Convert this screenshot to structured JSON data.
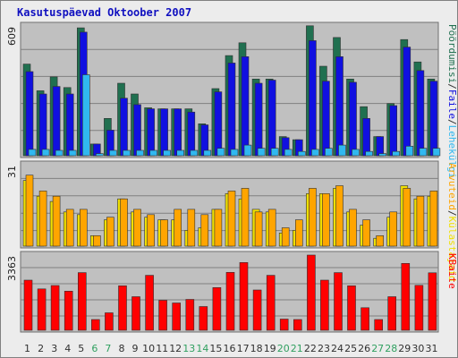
{
  "title": "Kasutuspäevad Oktoober 2007",
  "colors": {
    "plot_bg": "#c0c0c0",
    "grid": "#808080",
    "visits": "#207050",
    "pages": "#1010e0",
    "files": "#30b8f0",
    "visitors": "#ffa500",
    "sites": "#f0e000",
    "kbytes": "#ff0000",
    "weekday_label": "#303030",
    "weekend_label": "#30a060"
  },
  "chart_data": [
    {
      "type": "bar",
      "panel": "top",
      "ymax_label": "609",
      "ylim": [
        0,
        609
      ],
      "categories": [
        "1",
        "2",
        "3",
        "4",
        "5",
        "6",
        "7",
        "8",
        "9",
        "10",
        "11",
        "12",
        "13",
        "14",
        "15",
        "16",
        "17",
        "18",
        "19",
        "20",
        "21",
        "22",
        "23",
        "24",
        "25",
        "26",
        "27",
        "28",
        "29",
        "30",
        "31"
      ],
      "weekend": [
        "6",
        "7",
        "13",
        "14",
        "20",
        "21",
        "27",
        "28"
      ],
      "series": [
        {
          "name": "Pöördumisi",
          "color_key": "visits",
          "values": [
            430,
            305,
            370,
            320,
            600,
            55,
            175,
            340,
            290,
            225,
            220,
            220,
            220,
            150,
            315,
            470,
            530,
            360,
            360,
            90,
            75,
            610,
            420,
            555,
            360,
            230,
            90,
            245,
            545,
            440,
            360
          ]
        },
        {
          "name": "Faile",
          "color_key": "pages",
          "values": [
            395,
            290,
            325,
            290,
            580,
            55,
            120,
            270,
            240,
            220,
            220,
            220,
            205,
            145,
            300,
            435,
            465,
            340,
            355,
            85,
            75,
            540,
            350,
            465,
            345,
            175,
            90,
            235,
            510,
            400,
            350
          ]
        },
        {
          "name": "Lehekülgi",
          "color_key": "files",
          "values": [
            30,
            30,
            25,
            25,
            380,
            10,
            25,
            25,
            25,
            25,
            25,
            25,
            25,
            25,
            35,
            30,
            50,
            35,
            35,
            30,
            20,
            30,
            35,
            50,
            30,
            20,
            10,
            20,
            45,
            35,
            35
          ]
        }
      ],
      "right_legend": [
        "Pöördumisi",
        "/",
        "Faile",
        "/",
        "Lehekülgi"
      ]
    },
    {
      "type": "bar",
      "panel": "middle",
      "ymax_label": "31",
      "ylim": [
        0,
        31
      ],
      "categories": [
        "1",
        "2",
        "3",
        "4",
        "5",
        "6",
        "7",
        "8",
        "9",
        "10",
        "11",
        "12",
        "13",
        "14",
        "15",
        "16",
        "17",
        "18",
        "19",
        "20",
        "21",
        "22",
        "23",
        "24",
        "25",
        "26",
        "27",
        "28",
        "29",
        "30",
        "31"
      ],
      "series": [
        {
          "name": "Külastajaid",
          "color_key": "sites",
          "values": [
            25,
            19,
            17,
            13,
            12,
            4,
            10,
            18,
            13,
            11,
            10,
            10,
            6,
            7,
            14,
            20,
            18,
            14,
            13,
            5,
            6,
            20,
            20,
            22,
            13,
            8,
            3,
            11,
            23,
            18,
            19
          ]
        },
        {
          "name": "Arvuteid",
          "color_key": "visitors",
          "values": [
            27,
            21,
            19,
            14,
            14,
            4,
            11,
            18,
            14,
            12,
            10,
            14,
            14,
            12,
            14,
            21,
            22,
            13,
            14,
            7,
            10,
            22,
            20,
            23,
            14,
            10,
            4,
            13,
            22,
            19,
            21
          ]
        }
      ],
      "right_legend": [
        "Arvuteid",
        "/",
        "Külastajaid"
      ]
    },
    {
      "type": "bar",
      "panel": "bottom",
      "ymax_label": "3363",
      "ylim": [
        0,
        3363
      ],
      "categories": [
        "1",
        "2",
        "3",
        "4",
        "5",
        "6",
        "7",
        "8",
        "9",
        "10",
        "11",
        "12",
        "13",
        "14",
        "15",
        "16",
        "17",
        "18",
        "19",
        "20",
        "21",
        "22",
        "23",
        "24",
        "25",
        "26",
        "27",
        "28",
        "29",
        "30",
        "31"
      ],
      "series": [
        {
          "name": "KBaite",
          "color_key": "kbytes",
          "values": [
            2240,
            1850,
            2000,
            1750,
            2580,
            480,
            780,
            1990,
            1500,
            2460,
            1340,
            1220,
            1380,
            1060,
            1910,
            2590,
            3030,
            1800,
            2460,
            500,
            480,
            3363,
            2240,
            2580,
            1990,
            1010,
            480,
            1500,
            2990,
            2010,
            2570
          ]
        }
      ],
      "right_legend": [
        "KBaite"
      ]
    }
  ]
}
